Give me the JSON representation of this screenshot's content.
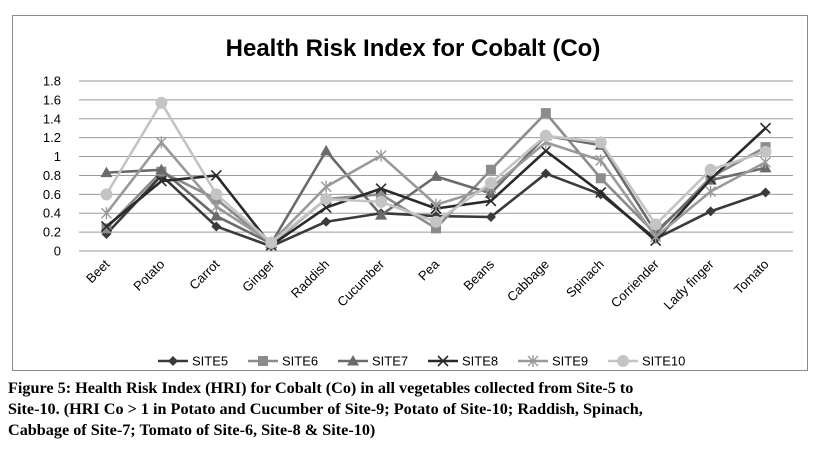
{
  "chart_data": {
    "type": "line",
    "title": "Health Risk Index for Cobalt (Co)",
    "xlabel": "",
    "ylabel": "",
    "ylim": [
      0,
      1.8
    ],
    "yticks": [
      "0",
      "0.2",
      "0.4",
      "0.6",
      "0.8",
      "1",
      "1.2",
      "1.4",
      "1.6",
      "1.8"
    ],
    "grid": true,
    "legend": "bottom",
    "categories": [
      "Beet",
      "Potato",
      "Carrot",
      "Ginger",
      "Raddish",
      "Cucumber",
      "Pea",
      "Beans",
      "Cabbage",
      "Spinach",
      "Corriender",
      "Lady finger",
      "Tomato"
    ],
    "series": [
      {
        "name": "SITE5",
        "marker": "diamond",
        "color": "#3a3a3a",
        "values": [
          0.18,
          0.8,
          0.26,
          0.05,
          0.31,
          0.4,
          0.37,
          0.36,
          0.82,
          0.6,
          0.13,
          0.42,
          0.62
        ]
      },
      {
        "name": "SITE6",
        "marker": "square",
        "color": "#8c8c8c",
        "values": [
          0.24,
          0.84,
          0.55,
          0.07,
          0.55,
          0.6,
          0.24,
          0.86,
          1.46,
          0.77,
          0.18,
          0.78,
          1.1
        ]
      },
      {
        "name": "SITE7",
        "marker": "triangle",
        "color": "#6b6b6b",
        "values": [
          0.83,
          0.86,
          0.37,
          0.08,
          1.06,
          0.38,
          0.79,
          0.61,
          1.22,
          1.12,
          0.2,
          0.75,
          0.88
        ]
      },
      {
        "name": "SITE8",
        "marker": "x",
        "color": "#2a2a2a",
        "values": [
          0.26,
          0.74,
          0.8,
          0.06,
          0.46,
          0.66,
          0.45,
          0.53,
          1.06,
          0.62,
          0.11,
          0.76,
          1.3
        ]
      },
      {
        "name": "SITE9",
        "marker": "star",
        "color": "#9a9a9a",
        "values": [
          0.4,
          1.15,
          0.47,
          0.09,
          0.68,
          1.01,
          0.49,
          0.67,
          1.15,
          0.96,
          0.15,
          0.63,
          0.94
        ]
      },
      {
        "name": "SITE10",
        "marker": "circle",
        "color": "#c4c4c4",
        "values": [
          0.6,
          1.57,
          0.6,
          0.09,
          0.55,
          0.52,
          0.31,
          0.72,
          1.22,
          1.15,
          0.28,
          0.86,
          1.05
        ]
      }
    ]
  },
  "caption": {
    "line1": "Figure 5: Health Risk Index (HRI) for Cobalt (Co) in all vegetables collected from Site-5 to",
    "line2": "Site-10. (HRI Co > 1 in Potato and Cucumber of Site-9; Potato of Site-10; Raddish, Spinach,",
    "line3": "Cabbage of Site-7; Tomato of Site-6, Site-8 & Site-10)"
  }
}
